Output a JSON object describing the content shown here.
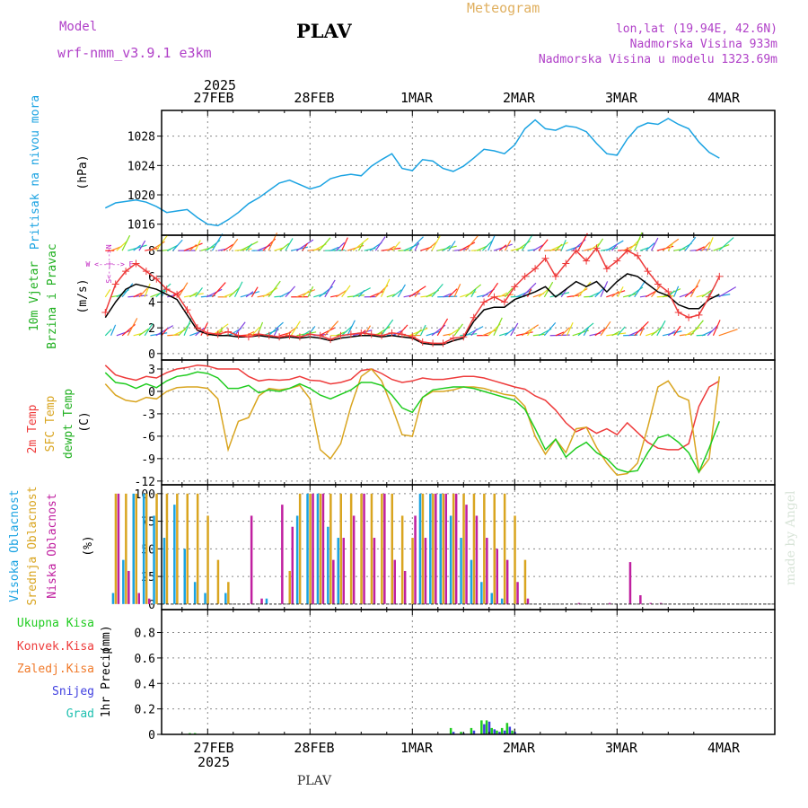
{
  "header": {
    "model_label": "Model",
    "model_name": "wrf-nmm_v3.9.1 e3km",
    "station": "PLAV",
    "meteogram": "Meteogram",
    "lonlat": "lon,lat (19.94E, 42.6N)",
    "elevation": "Nadmorska Visina 933m",
    "model_elevation": "Nadmorska Visina u modelu 1323.69m",
    "watermark": "made by Angel",
    "footer_station": "PLAV"
  },
  "colors": {
    "pressure": "#1ba3e2",
    "temp2m": "#ee3b3b",
    "sfc": "#d9a520",
    "dew": "#20cc20",
    "wind_black": "#000000",
    "gust": "#ee3b3b",
    "high_cloud": "#1ba3e2",
    "mid_cloud": "#d9a520",
    "low_cloud": "#c020a0",
    "precip_total": "#20cc20",
    "precip_conv": "#ee3b3b",
    "precip_snow": "#4040e0"
  },
  "chart_data": [
    {
      "type": "line",
      "id": "pressure",
      "ylabel": "Pritisak na nivou mora",
      "unit": "(hPa)",
      "ylim": [
        1014.5,
        1031.5
      ],
      "yticks": [
        "1016",
        "1020",
        "1024",
        "1028"
      ],
      "x_days": [
        "27FEB",
        "28FEB",
        "1MAR",
        "2MAR",
        "3MAR",
        "4MAR"
      ],
      "top_year": "2025",
      "bottom_year": "2025",
      "xlim": [
        0,
        6
      ],
      "x": [
        0,
        0.1,
        0.2,
        0.3,
        0.4,
        0.5,
        0.6,
        0.7,
        0.8,
        0.9,
        1.0,
        1.1,
        1.2,
        1.3,
        1.4,
        1.5,
        1.6,
        1.7,
        1.8,
        1.9,
        2.0,
        2.1,
        2.2,
        2.3,
        2.4,
        2.5,
        2.6,
        2.7,
        2.8,
        2.9,
        3.0,
        3.1,
        3.2,
        3.3,
        3.4,
        3.5,
        3.6,
        3.7,
        3.8,
        3.9,
        4.0,
        4.1,
        4.2,
        4.3,
        4.4,
        4.5,
        4.6,
        4.7,
        4.8,
        4.9,
        5.0,
        5.1,
        5.2,
        5.3,
        5.4,
        5.5,
        5.6,
        5.7,
        5.8,
        5.9,
        6.0
      ],
      "series": [
        {
          "name": "Pritisak",
          "color": "#1ba3e2",
          "values": [
            1018.2,
            1018.9,
            1019.1,
            1019.3,
            1019.0,
            1018.4,
            1017.6,
            1017.8,
            1018.0,
            1016.9,
            1016.0,
            1015.8,
            1016.6,
            1017.6,
            1018.8,
            1019.6,
            1020.6,
            1021.6,
            1022.0,
            1021.4,
            1020.8,
            1021.2,
            1022.2,
            1022.6,
            1022.8,
            1022.6,
            1023.9,
            1024.8,
            1025.6,
            1023.6,
            1023.3,
            1024.8,
            1024.6,
            1023.6,
            1023.2,
            1023.9,
            1025.0,
            1026.2,
            1026.0,
            1025.6,
            1026.8,
            1029.0,
            1030.2,
            1029.0,
            1028.8,
            1029.4,
            1029.2,
            1028.6,
            1027.0,
            1025.6,
            1025.4,
            1027.6,
            1029.2,
            1029.8,
            1029.6,
            1030.4,
            1029.6,
            1029.0,
            1027.2,
            1025.8,
            1025.0
          ]
        }
      ]
    },
    {
      "type": "line",
      "id": "wind",
      "ylabel": "10m Vjetar",
      "ylabel2": "Brzina i Pravac",
      "unit": "(m/s)",
      "compass": "W <--|--> E",
      "compass_v": "S<--|-->N",
      "ylim": [
        -0.5,
        9.2
      ],
      "yticks": [
        "0",
        "2",
        "4",
        "6",
        "8"
      ],
      "xlim": [
        0,
        6
      ],
      "x": [
        0,
        0.1,
        0.2,
        0.3,
        0.4,
        0.5,
        0.6,
        0.7,
        0.8,
        0.9,
        1.0,
        1.1,
        1.2,
        1.3,
        1.4,
        1.5,
        1.6,
        1.7,
        1.8,
        1.9,
        2.0,
        2.1,
        2.2,
        2.3,
        2.4,
        2.5,
        2.6,
        2.7,
        2.8,
        2.9,
        3.0,
        3.1,
        3.2,
        3.3,
        3.4,
        3.5,
        3.6,
        3.7,
        3.8,
        3.9,
        4.0,
        4.1,
        4.2,
        4.3,
        4.4,
        4.5,
        4.6,
        4.7,
        4.8,
        4.9,
        5.0,
        5.1,
        5.2,
        5.3,
        5.4,
        5.5,
        5.6,
        5.7,
        5.8,
        5.9,
        6.0
      ],
      "series": [
        {
          "name": "Brzina",
          "color": "#000000",
          "values": [
            2.8,
            4.0,
            5.0,
            5.4,
            5.2,
            5.0,
            4.6,
            4.2,
            3.0,
            1.8,
            1.5,
            1.4,
            1.4,
            1.3,
            1.3,
            1.4,
            1.3,
            1.2,
            1.3,
            1.2,
            1.3,
            1.2,
            1.0,
            1.2,
            1.3,
            1.4,
            1.4,
            1.3,
            1.4,
            1.3,
            1.2,
            0.8,
            0.7,
            0.7,
            1.0,
            1.2,
            2.5,
            3.4,
            3.6,
            3.6,
            4.2,
            4.5,
            4.8,
            5.2,
            4.4,
            5.0,
            5.6,
            5.2,
            5.6,
            4.8,
            5.6,
            6.2,
            6.0,
            5.4,
            4.8,
            4.5,
            3.8,
            3.5,
            3.5,
            4.2,
            4.6
          ]
        },
        {
          "name": "Udar",
          "color": "#ee3b3b",
          "values": [
            3.2,
            5.4,
            6.4,
            7.0,
            6.4,
            5.8,
            5.0,
            4.6,
            3.4,
            2.0,
            1.6,
            1.5,
            1.7,
            1.4,
            1.3,
            1.5,
            1.4,
            1.3,
            1.4,
            1.3,
            1.5,
            1.4,
            1.1,
            1.4,
            1.5,
            1.6,
            1.5,
            1.4,
            1.6,
            1.5,
            1.3,
            0.9,
            0.8,
            0.8,
            1.2,
            1.3,
            2.8,
            4.0,
            4.4,
            4.0,
            5.2,
            6.0,
            6.6,
            7.4,
            6.0,
            7.0,
            8.0,
            7.2,
            8.2,
            6.6,
            7.2,
            8.0,
            7.6,
            6.4,
            5.4,
            4.8,
            3.2,
            2.8,
            3.0,
            4.4,
            6.0
          ]
        }
      ]
    },
    {
      "type": "line",
      "id": "temperature",
      "ylabel": "2m Temp",
      "ylabel2": "SFC Temp",
      "ylabel3": "dewpt Temp",
      "unit": "(C)",
      "ylim": [
        -12.5,
        4.2
      ],
      "yticks": [
        "3",
        "0",
        "-3",
        "-6",
        "-9",
        "-12"
      ],
      "xlim": [
        0,
        6
      ],
      "x": [
        0,
        0.1,
        0.2,
        0.3,
        0.4,
        0.5,
        0.6,
        0.7,
        0.8,
        0.9,
        1.0,
        1.1,
        1.2,
        1.3,
        1.4,
        1.5,
        1.6,
        1.7,
        1.8,
        1.9,
        2.0,
        2.1,
        2.2,
        2.3,
        2.4,
        2.5,
        2.6,
        2.7,
        2.8,
        2.9,
        3.0,
        3.1,
        3.2,
        3.3,
        3.4,
        3.5,
        3.6,
        3.7,
        3.8,
        3.9,
        4.0,
        4.1,
        4.2,
        4.3,
        4.4,
        4.5,
        4.6,
        4.7,
        4.8,
        4.9,
        5.0,
        5.1,
        5.2,
        5.3,
        5.4,
        5.5,
        5.6,
        5.7,
        5.8,
        5.9,
        6.0
      ],
      "series": [
        {
          "name": "2m Temp",
          "color": "#ee3b3b",
          "values": [
            3.5,
            2.2,
            1.8,
            1.5,
            2.0,
            1.8,
            2.5,
            3.0,
            3.2,
            3.5,
            3.4,
            3.0,
            3.0,
            3.0,
            2.0,
            1.4,
            1.6,
            1.5,
            1.6,
            2.0,
            1.5,
            1.4,
            1.0,
            1.2,
            1.6,
            2.8,
            3.0,
            2.4,
            1.6,
            1.2,
            1.4,
            1.8,
            1.6,
            1.6,
            1.8,
            2.0,
            2.0,
            1.8,
            1.4,
            1.0,
            0.6,
            0.3,
            -0.6,
            -1.2,
            -2.5,
            -4.2,
            -5.4,
            -4.8,
            -5.6,
            -5.0,
            -5.8,
            -4.2,
            -5.5,
            -6.8,
            -7.6,
            -7.8,
            -7.8,
            -7.0,
            -2.0,
            0.6,
            1.4
          ]
        },
        {
          "name": "SFC Temp",
          "color": "#d9a520",
          "values": [
            1.0,
            -0.5,
            -1.2,
            -1.4,
            -0.8,
            -1.0,
            0.0,
            0.5,
            0.6,
            0.6,
            0.4,
            -1.0,
            -7.8,
            -4.0,
            -3.5,
            -0.6,
            0.4,
            0.2,
            0.4,
            0.8,
            -1.0,
            -7.8,
            -9.0,
            -7.0,
            -2.0,
            2.0,
            3.0,
            1.4,
            -2.0,
            -5.8,
            -6.0,
            -0.8,
            0.0,
            0.0,
            0.2,
            0.6,
            0.6,
            0.4,
            0.0,
            -0.4,
            -0.6,
            -2.0,
            -6.0,
            -8.4,
            -6.4,
            -8.2,
            -5.0,
            -4.8,
            -7.5,
            -9.6,
            -11.2,
            -11.0,
            -9.6,
            -4.8,
            0.6,
            1.4,
            -0.6,
            -1.2,
            -10.8,
            -9.0,
            2.0
          ]
        },
        {
          "name": "dewpt Temp",
          "color": "#20cc20",
          "values": [
            2.5,
            1.2,
            1.0,
            0.4,
            1.0,
            0.5,
            1.4,
            2.0,
            2.2,
            2.6,
            2.4,
            1.8,
            0.4,
            0.4,
            0.8,
            -0.2,
            0.2,
            0.0,
            0.4,
            1.0,
            0.4,
            -0.5,
            -1.0,
            -0.4,
            0.2,
            1.2,
            1.2,
            0.8,
            -0.5,
            -2.2,
            -2.8,
            -0.8,
            0.2,
            0.4,
            0.6,
            0.6,
            0.4,
            0.0,
            -0.4,
            -0.8,
            -1.2,
            -2.4,
            -5.0,
            -7.8,
            -6.4,
            -8.8,
            -7.6,
            -6.8,
            -8.2,
            -9.0,
            -10.4,
            -10.8,
            -10.6,
            -8.2,
            -6.2,
            -5.8,
            -6.8,
            -8.2,
            -10.8,
            -7.6,
            -4.0
          ]
        }
      ]
    },
    {
      "type": "bar",
      "id": "clouds",
      "ylabel": "Visoka Oblacnost",
      "ylabel2": "Srednja Oblacnost",
      "ylabel3": "Niska Oblacnost",
      "unit": "(%)",
      "ylim": [
        -5,
        108
      ],
      "yticks": [
        "0",
        "25",
        "50",
        "75",
        "100"
      ],
      "xlim": [
        0,
        6
      ],
      "x": [
        0.1,
        0.2,
        0.3,
        0.4,
        0.5,
        0.6,
        0.7,
        0.8,
        0.9,
        1.0,
        1.1,
        1.2,
        1.3,
        1.4,
        1.5,
        1.6,
        1.7,
        1.8,
        1.9,
        2.0,
        2.1,
        2.2,
        2.3,
        2.4,
        2.5,
        2.6,
        2.7,
        2.8,
        2.9,
        3.0,
        3.1,
        3.2,
        3.3,
        3.4,
        3.5,
        3.6,
        3.7,
        3.8,
        3.9,
        4.0,
        4.1,
        4.2,
        4.3,
        4.4,
        4.5,
        4.6,
        4.7,
        4.8,
        4.9,
        5.0,
        5.1,
        5.2,
        5.3,
        5.4,
        5.5,
        5.6,
        5.7,
        5.8,
        5.9
      ],
      "series": [
        {
          "name": "Visoka",
          "color": "#1ba3e2",
          "values": [
            10,
            40,
            100,
            100,
            80,
            60,
            90,
            50,
            20,
            10,
            0,
            10,
            0,
            0,
            0,
            5,
            0,
            0,
            80,
            100,
            100,
            70,
            60,
            0,
            0,
            0,
            0,
            0,
            0,
            0,
            100,
            100,
            100,
            80,
            60,
            40,
            20,
            10,
            5,
            0,
            0,
            0,
            0,
            0,
            0,
            0,
            0,
            0,
            0,
            0,
            0,
            0,
            0,
            0,
            0,
            0,
            0,
            0,
            0
          ]
        },
        {
          "name": "Srednja",
          "color": "#d9a520",
          "values": [
            100,
            100,
            100,
            100,
            100,
            100,
            100,
            100,
            100,
            80,
            40,
            20,
            0,
            0,
            0,
            0,
            0,
            30,
            100,
            100,
            100,
            100,
            100,
            100,
            100,
            100,
            100,
            100,
            80,
            60,
            100,
            100,
            100,
            100,
            100,
            100,
            100,
            100,
            100,
            80,
            40,
            0,
            0,
            0,
            0,
            0,
            0,
            0,
            0,
            0,
            0,
            0,
            0,
            0,
            0,
            0,
            0,
            0,
            0
          ]
        },
        {
          "name": "Niska",
          "color": "#c020a0",
          "values": [
            100,
            30,
            10,
            5,
            0,
            0,
            0,
            0,
            0,
            0,
            0,
            0,
            0,
            80,
            5,
            0,
            90,
            70,
            0,
            100,
            100,
            40,
            60,
            80,
            100,
            60,
            100,
            40,
            30,
            80,
            60,
            100,
            100,
            100,
            90,
            80,
            60,
            50,
            40,
            20,
            5,
            0,
            0,
            0,
            0,
            1,
            0,
            0,
            1,
            0,
            38,
            8,
            1,
            1,
            0,
            0,
            0,
            0,
            0
          ]
        }
      ]
    },
    {
      "type": "bar",
      "id": "precip",
      "ylabel": "1hr Precip",
      "unit": "(mm)",
      "legend": [
        "Ukupna Kisa",
        "Konvek.Kisa",
        "Zaledj.Kisa",
        "Snijeg",
        "Grad"
      ],
      "legend_colors": [
        "#20cc20",
        "#ee3b3b",
        "#f07a2a",
        "#4040e0",
        "#20c0b0"
      ],
      "ylim": [
        0,
        0.98
      ],
      "yticks": [
        "0",
        "0.2",
        "0.4",
        "0.6",
        "0.8"
      ],
      "xlim": [
        0,
        6
      ],
      "x": [
        0.85,
        0.9,
        3.4,
        3.5,
        3.6,
        3.7,
        3.75,
        3.8,
        3.85,
        3.9,
        3.95,
        4.0
      ],
      "series": [
        {
          "name": "Ukupna Kisa",
          "color": "#20cc20",
          "values": [
            0.01,
            0.01,
            0.05,
            0.02,
            0.05,
            0.11,
            0.11,
            0.05,
            0.03,
            0.05,
            0.09,
            0.03
          ]
        },
        {
          "name": "Snijeg",
          "color": "#4040e0",
          "values": [
            0,
            0,
            0.02,
            0.01,
            0.03,
            0.08,
            0.1,
            0.04,
            0.02,
            0.03,
            0.06,
            0.02
          ]
        }
      ]
    }
  ]
}
